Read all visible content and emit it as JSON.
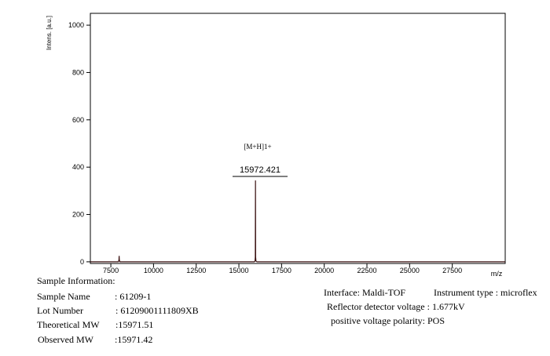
{
  "chart_data": {
    "type": "line",
    "y_label": "Intens. [a.u.]",
    "x_label": "m/z",
    "x": [
      6300,
      7940,
      7975,
      7986,
      7998,
      8030,
      15900,
      15945,
      15962,
      15972,
      15982,
      16000,
      16060,
      30600
    ],
    "series": [
      {
        "name": "spectrum",
        "color": "#3a1010",
        "values": [
          0,
          0,
          8,
          25,
          8,
          0,
          0,
          3,
          20,
          344,
          20,
          3,
          0,
          0
        ]
      }
    ],
    "xlim": [
      6300,
      30600
    ],
    "ylim": [
      -7,
      1050
    ],
    "xticks": [
      7500,
      10000,
      12500,
      15000,
      17500,
      20000,
      22500,
      25000,
      27500
    ],
    "yticks": [
      0,
      200,
      400,
      600,
      800,
      1000
    ],
    "annotations": [
      "[M+H]1+",
      "15972.421"
    ]
  },
  "sample_info": {
    "title": "Sample Information:",
    "rows": [
      [
        "Sample Name",
        ": 61209-1"
      ],
      [
        "Lot Number",
        ": 61209001111809XB"
      ],
      [
        "Theoretical MW",
        ":15971.51"
      ],
      [
        "Observed MW",
        ":15971.42"
      ]
    ]
  },
  "instrument_info": [
    "Interface: Maldi-TOF",
    "Instrument type : microflex",
    "Reflector detector voltage : 1.677kV",
    "positive voltage polarity: POS"
  ]
}
